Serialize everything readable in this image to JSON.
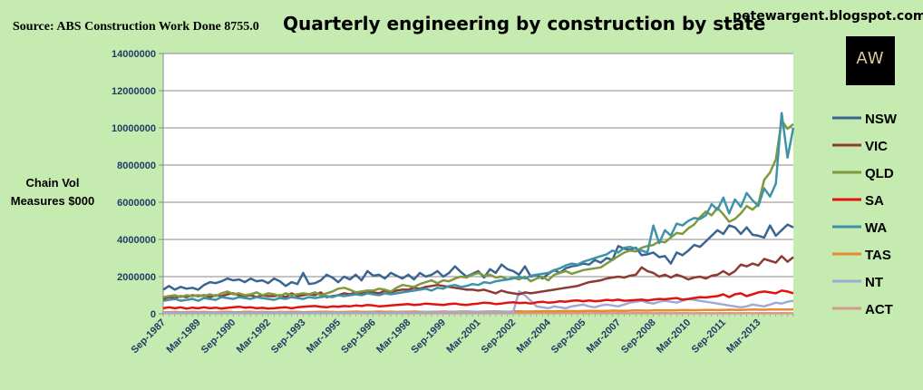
{
  "header": {
    "source": "Source: ABS Construction Work Done 8755.0",
    "website": "petewargent.blogspot.com",
    "logo_text": "AW"
  },
  "chart_data": {
    "type": "line",
    "title": "Quarterly engineering by construction by state",
    "ylabel": "Chain Vol Measures $000",
    "xlabel": "",
    "ylim": [
      0,
      14000000
    ],
    "yticks": [
      0,
      2000000,
      4000000,
      6000000,
      8000000,
      10000000,
      12000000,
      14000000
    ],
    "ytick_labels": [
      "0",
      "2000000",
      "4000000",
      "6000000",
      "8000000",
      "10000000",
      "12000000",
      "14000000"
    ],
    "x_start_label": "Sep-1987",
    "n_quarters": 109,
    "x_tick_labels": [
      "Sep-1987",
      "Mar-1989",
      "Sep-1990",
      "Mar-1992",
      "Sep-1993",
      "Mar-1995",
      "Sep-1996",
      "Mar-1998",
      "Sep-1999",
      "Mar-2001",
      "Sep-2002",
      "Mar-2004",
      "Sep-2005",
      "Mar-2007",
      "Sep-2008",
      "Mar-2010",
      "Sep-2011",
      "Mar-2013"
    ],
    "x_tick_step": 6,
    "grid": true,
    "legend_position": "right",
    "series": [
      {
        "name": "NSW",
        "color": "#3a6592",
        "values": [
          1300000,
          1500000,
          1300000,
          1450000,
          1350000,
          1400000,
          1300000,
          1550000,
          1700000,
          1650000,
          1750000,
          1900000,
          1800000,
          1850000,
          1700000,
          1900000,
          1750000,
          1800000,
          1650000,
          1900000,
          1750000,
          1500000,
          1700000,
          1600000,
          2200000,
          1600000,
          1650000,
          1800000,
          2100000,
          1950000,
          1700000,
          2000000,
          1850000,
          2100000,
          1800000,
          2300000,
          2050000,
          2100000,
          1900000,
          2200000,
          2050000,
          1900000,
          2100000,
          1850000,
          2200000,
          2000000,
          2100000,
          2300000,
          2000000,
          2200000,
          2550000,
          2250000,
          2000000,
          2150000,
          2300000,
          1950000,
          2400000,
          2200000,
          2650000,
          2400000,
          2300000,
          2100000,
          2550000,
          2000000,
          2100000,
          1900000,
          2150000,
          2350000,
          2200000,
          2450000,
          2550000,
          2600000,
          2700000,
          2650000,
          2900000,
          2750000,
          3000000,
          2900000,
          3650000,
          3500000,
          3450000,
          3550000,
          3150000,
          3200000,
          3300000,
          3050000,
          3100000,
          2700000,
          3300000,
          3150000,
          3400000,
          3700000,
          3600000,
          3900000,
          4200000,
          4500000,
          4300000,
          4750000,
          4650000,
          4300000,
          4650000,
          4250000,
          4200000,
          4100000,
          4750000,
          4200000,
          4500000,
          4800000,
          4650000
        ]
      },
      {
        "name": "VIC",
        "color": "#8e3a33",
        "values": [
          800000,
          900000,
          850000,
          950000,
          900000,
          1000000,
          950000,
          1000000,
          900000,
          1000000,
          950000,
          1050000,
          1100000,
          1000000,
          950000,
          1000000,
          900000,
          1000000,
          950000,
          950000,
          1000000,
          900000,
          1100000,
          950000,
          1000000,
          1050000,
          1000000,
          1150000,
          900000,
          950000,
          1000000,
          1100000,
          1050000,
          1150000,
          1100000,
          1200000,
          1150000,
          1100000,
          1250000,
          1150000,
          1250000,
          1300000,
          1300000,
          1400000,
          1350000,
          1450000,
          1500000,
          1550000,
          1500000,
          1450000,
          1400000,
          1350000,
          1300000,
          1300000,
          1250000,
          1300000,
          1200000,
          1100000,
          1250000,
          1150000,
          1100000,
          1050000,
          1150000,
          1100000,
          1150000,
          1200000,
          1250000,
          1300000,
          1350000,
          1400000,
          1450000,
          1500000,
          1600000,
          1700000,
          1750000,
          1800000,
          1900000,
          1950000,
          2000000,
          1950000,
          2050000,
          2100000,
          2500000,
          2300000,
          2200000,
          2000000,
          2100000,
          1950000,
          2100000,
          2000000,
          1850000,
          1950000,
          2000000,
          1900000,
          2050000,
          2100000,
          2300000,
          2100000,
          2300000,
          2650000,
          2550000,
          2700000,
          2600000,
          2950000,
          2850000,
          2750000,
          3100000,
          2800000,
          3050000
        ]
      },
      {
        "name": "QLD",
        "color": "#7f9a3c",
        "values": [
          900000,
          950000,
          1000000,
          900000,
          1000000,
          950000,
          1000000,
          950000,
          1050000,
          950000,
          1100000,
          1200000,
          1050000,
          1100000,
          1000000,
          1050000,
          1150000,
          1000000,
          1100000,
          1050000,
          950000,
          1100000,
          1000000,
          1050000,
          1100000,
          1050000,
          1150000,
          1000000,
          1100000,
          1200000,
          1350000,
          1400000,
          1300000,
          1150000,
          1200000,
          1250000,
          1250000,
          1350000,
          1300000,
          1200000,
          1400000,
          1550000,
          1500000,
          1450000,
          1600000,
          1700000,
          1800000,
          1650000,
          1800000,
          1750000,
          1900000,
          2000000,
          1950000,
          2100000,
          2200000,
          2050000,
          2100000,
          1950000,
          2000000,
          1850000,
          1950000,
          1850000,
          2000000,
          1750000,
          1900000,
          2000000,
          1800000,
          2100000,
          2200000,
          2300000,
          2150000,
          2250000,
          2350000,
          2400000,
          2450000,
          2500000,
          2700000,
          2900000,
          3100000,
          3300000,
          3400000,
          3350000,
          3550000,
          3650000,
          3700000,
          3900000,
          3850000,
          4100000,
          4350000,
          4300000,
          4600000,
          4800000,
          5200000,
          5500000,
          5300000,
          5700000,
          5350000,
          4950000,
          5100000,
          5400000,
          5800000,
          5600000,
          5900000,
          7200000,
          7600000,
          8300000,
          10400000,
          9950000,
          10200000
        ]
      },
      {
        "name": "SA",
        "color": "#e2130e",
        "values": [
          300000,
          350000,
          300000,
          350000,
          280000,
          330000,
          300000,
          350000,
          300000,
          330000,
          280000,
          320000,
          350000,
          380000,
          330000,
          350000,
          300000,
          320000,
          280000,
          300000,
          330000,
          350000,
          300000,
          350000,
          380000,
          400000,
          420000,
          380000,
          350000,
          400000,
          380000,
          420000,
          400000,
          450000,
          420000,
          480000,
          450000,
          400000,
          420000,
          450000,
          480000,
          500000,
          520000,
          480000,
          500000,
          550000,
          520000,
          500000,
          480000,
          520000,
          550000,
          500000,
          480000,
          520000,
          550000,
          600000,
          580000,
          520000,
          550000,
          600000,
          620000,
          580000,
          600000,
          550000,
          620000,
          650000,
          600000,
          620000,
          680000,
          650000,
          700000,
          720000,
          680000,
          720000,
          680000,
          700000,
          750000,
          720000,
          760000,
          700000,
          720000,
          740000,
          760000,
          720000,
          760000,
          800000,
          780000,
          820000,
          850000,
          760000,
          800000,
          850000,
          900000,
          880000,
          920000,
          950000,
          1050000,
          900000,
          1050000,
          1100000,
          950000,
          1050000,
          1150000,
          1200000,
          1150000,
          1100000,
          1250000,
          1200000,
          1100000
        ]
      },
      {
        "name": "WA",
        "color": "#3e93a8",
        "values": [
          700000,
          750000,
          800000,
          700000,
          750000,
          800000,
          700000,
          850000,
          800000,
          750000,
          900000,
          850000,
          800000,
          900000,
          850000,
          800000,
          900000,
          850000,
          800000,
          750000,
          850000,
          800000,
          900000,
          850000,
          800000,
          900000,
          850000,
          900000,
          950000,
          900000,
          1000000,
          950000,
          1000000,
          1050000,
          1000000,
          1100000,
          1050000,
          1000000,
          1100000,
          1050000,
          1100000,
          1150000,
          1200000,
          1250000,
          1300000,
          1350000,
          1250000,
          1400000,
          1350000,
          1500000,
          1550000,
          1450000,
          1500000,
          1600000,
          1550000,
          1700000,
          1650000,
          1750000,
          1800000,
          1850000,
          1900000,
          2000000,
          1900000,
          2050000,
          2100000,
          2150000,
          2200000,
          2350000,
          2450000,
          2600000,
          2700000,
          2650000,
          2800000,
          2900000,
          3000000,
          3100000,
          3200000,
          3400000,
          3300000,
          3550000,
          3600000,
          3500000,
          3400000,
          3300000,
          4750000,
          3800000,
          4500000,
          4200000,
          4850000,
          4750000,
          5000000,
          5150000,
          5100000,
          5300000,
          5900000,
          5600000,
          6250000,
          5400000,
          6150000,
          5750000,
          6500000,
          6100000,
          5800000,
          6750000,
          6300000,
          7000000,
          10800000,
          8400000,
          10000000
        ]
      },
      {
        "name": "TAS",
        "color": "#e88a2e",
        "values": [
          80000,
          90000,
          100000,
          85000,
          90000,
          110000,
          95000,
          100000,
          90000,
          85000,
          100000,
          110000,
          95000,
          90000,
          100000,
          110000,
          95000,
          100000,
          90000,
          85000,
          100000,
          95000,
          110000,
          100000,
          90000,
          95000,
          100000,
          105000,
          110000,
          100000,
          95000,
          100000,
          110000,
          115000,
          105000,
          100000,
          110000,
          120000,
          110000,
          105000,
          100000,
          110000,
          115000,
          120000,
          110000,
          100000,
          105000,
          110000,
          120000,
          115000,
          110000,
          120000,
          125000,
          115000,
          110000,
          120000,
          125000,
          130000,
          120000,
          115000,
          125000,
          130000,
          120000,
          125000,
          130000,
          140000,
          135000,
          130000,
          140000,
          150000,
          145000,
          140000,
          150000,
          160000,
          155000,
          150000,
          160000,
          170000,
          165000,
          160000,
          170000,
          180000,
          175000,
          170000,
          180000,
          190000,
          185000,
          180000,
          190000,
          200000,
          195000,
          190000,
          200000,
          210000,
          205000,
          200000,
          210000,
          220000,
          215000,
          210000,
          220000,
          230000,
          225000,
          220000,
          230000,
          240000,
          235000,
          230000,
          240000
        ]
      },
      {
        "name": "NT",
        "color": "#9eaad2",
        "values": [
          50000,
          60000,
          55000,
          60000,
          50000,
          55000,
          60000,
          50000,
          55000,
          60000,
          55000,
          50000,
          60000,
          55000,
          50000,
          60000,
          55000,
          60000,
          50000,
          55000,
          60000,
          55000,
          50000,
          60000,
          55000,
          50000,
          60000,
          55000,
          60000,
          50000,
          55000,
          60000,
          55000,
          50000,
          60000,
          55000,
          60000,
          50000,
          55000,
          60000,
          70000,
          80000,
          75000,
          70000,
          80000,
          90000,
          85000,
          80000,
          90000,
          100000,
          95000,
          90000,
          100000,
          110000,
          100000,
          95000,
          100000,
          110000,
          120000,
          110000,
          100000,
          1200000,
          1000000,
          700000,
          400000,
          350000,
          300000,
          400000,
          350000,
          300000,
          400000,
          450000,
          500000,
          400000,
          350000,
          450000,
          500000,
          450000,
          400000,
          500000,
          600000,
          650000,
          700000,
          600000,
          550000,
          650000,
          700000,
          650000,
          600000,
          700000,
          800000,
          750000,
          700000,
          650000,
          600000,
          550000,
          500000,
          450000,
          400000,
          350000,
          400000,
          500000,
          450000,
          400000,
          500000,
          600000,
          550000,
          650000,
          700000
        ]
      },
      {
        "name": "ACT",
        "color": "#d49a8e",
        "values": [
          30000,
          35000,
          40000,
          35000,
          30000,
          40000,
          35000,
          30000,
          40000,
          35000,
          30000,
          35000,
          40000,
          35000,
          30000,
          40000,
          35000,
          30000,
          35000,
          40000,
          35000,
          30000,
          40000,
          35000,
          30000,
          35000,
          40000,
          35000,
          30000,
          40000,
          35000,
          30000,
          35000,
          40000,
          35000,
          30000,
          40000,
          35000,
          30000,
          35000,
          40000,
          35000,
          30000,
          40000,
          35000,
          30000,
          35000,
          40000,
          35000,
          30000,
          40000,
          35000,
          30000,
          35000,
          40000,
          35000,
          30000,
          40000,
          35000,
          30000,
          35000,
          40000,
          35000,
          30000,
          40000,
          35000,
          30000,
          35000,
          40000,
          35000,
          30000,
          40000,
          35000,
          30000,
          35000,
          40000,
          35000,
          30000,
          40000,
          35000,
          30000,
          35000,
          40000,
          35000,
          30000,
          40000,
          35000,
          30000,
          35000,
          40000,
          35000,
          30000,
          40000,
          35000,
          30000,
          35000,
          40000,
          35000,
          30000,
          40000,
          35000,
          30000,
          35000,
          40000,
          35000,
          30000,
          40000,
          35000,
          30000
        ]
      }
    ]
  }
}
